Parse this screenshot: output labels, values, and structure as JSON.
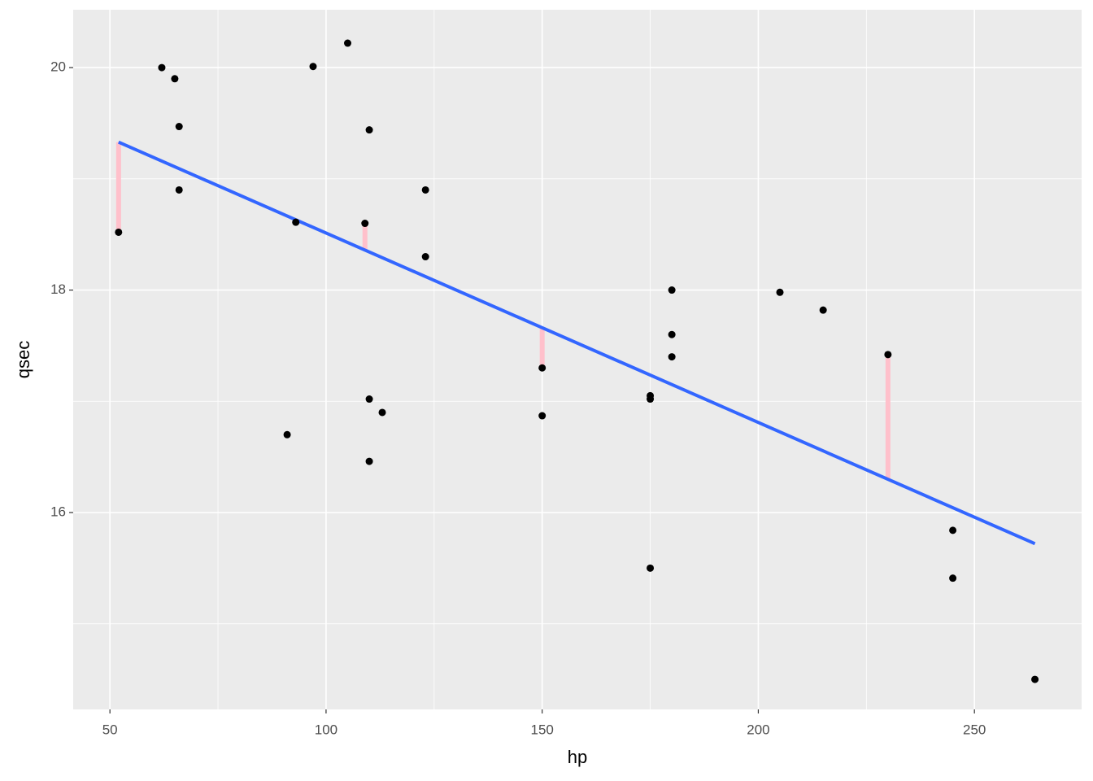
{
  "chart_data": {
    "type": "scatter",
    "x_label": "hp",
    "y_label": "qsec",
    "x": [
      110,
      110,
      93,
      110,
      175,
      105,
      245,
      62,
      123,
      123,
      180,
      180,
      180,
      205,
      215,
      230,
      66,
      52,
      65,
      97,
      150,
      150,
      245,
      175,
      66,
      91,
      113,
      264,
      175,
      109
    ],
    "values": [
      16.46,
      17.02,
      18.61,
      19.44,
      17.02,
      20.22,
      15.84,
      20.0,
      18.3,
      18.9,
      17.4,
      17.6,
      18.0,
      17.98,
      17.82,
      17.42,
      19.47,
      18.52,
      19.9,
      20.01,
      16.87,
      17.3,
      15.41,
      17.05,
      18.9,
      16.7,
      16.9,
      14.5,
      15.5,
      18.6
    ],
    "point_color": "#000000",
    "fit": {
      "x": [
        52,
        264
      ],
      "values": [
        19.33,
        15.72
      ],
      "color": "#3366ff"
    },
    "residuals": {
      "x": [
        52,
        109,
        150,
        230
      ],
      "values": [
        18.52,
        18.6,
        17.3,
        17.42
      ],
      "fitted": [
        19.33,
        18.36,
        17.66,
        16.3
      ],
      "color": "#ffc0cb"
    },
    "xlim": [
      41.5,
      274.8
    ],
    "ylim": [
      14.23,
      20.52
    ],
    "xticks": [
      50,
      100,
      150,
      200,
      250
    ],
    "yticks": [
      16,
      18,
      20
    ],
    "xminor": [
      75,
      125,
      175,
      225
    ],
    "yminor": [
      15,
      17,
      19
    ],
    "grid": true
  }
}
